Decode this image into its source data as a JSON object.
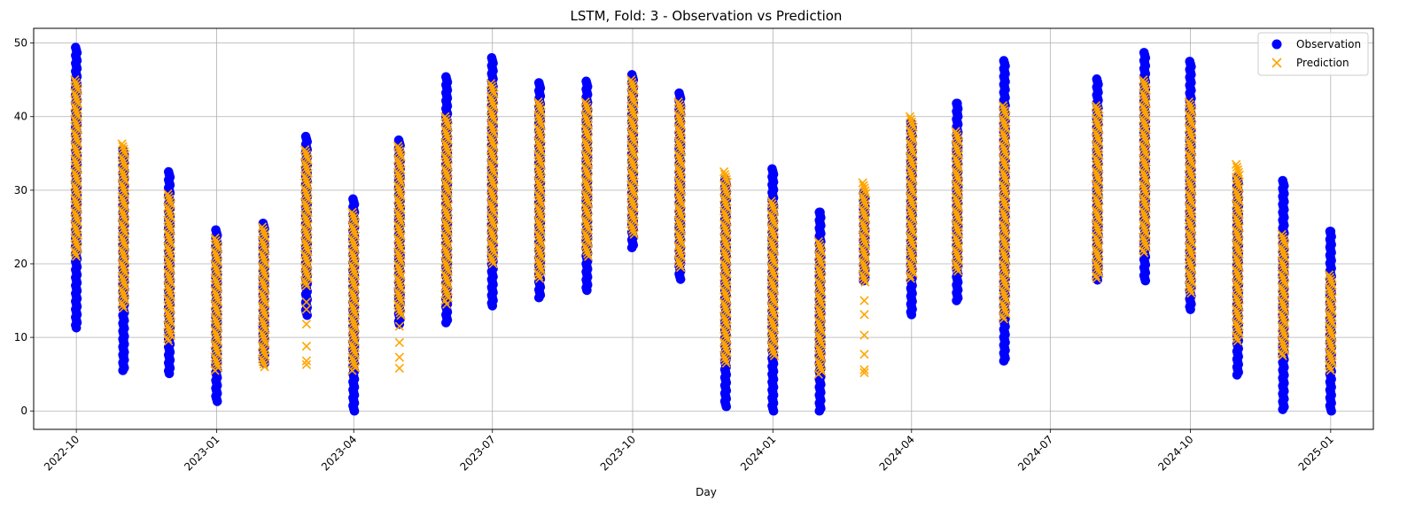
{
  "chart_data": {
    "type": "scatter",
    "title": "LSTM, Fold: 3 - Observation vs Prediction",
    "xlabel": "Day",
    "ylabel": "",
    "xlim": [
      "2022-09-03",
      "2025-01-29"
    ],
    "ylim": [
      -2.5,
      52
    ],
    "grid": true,
    "legend_position": "top-right",
    "x_ticks": [
      "2022-10",
      "2023-01",
      "2023-04",
      "2023-07",
      "2023-10",
      "2024-01",
      "2024-04",
      "2024-07",
      "2024-10",
      "2025-01"
    ],
    "y_ticks": [
      0,
      10,
      20,
      30,
      40,
      50
    ],
    "series": [
      {
        "name": "Observation",
        "marker": "circle",
        "color": "#0000ff",
        "points": [
          {
            "x": "2022-10-01",
            "min": 11.3,
            "max": 49.4
          },
          {
            "x": "2022-11-01",
            "min": 5.5,
            "max": 35.5
          },
          {
            "x": "2022-12-01",
            "min": 5.1,
            "max": 32.5
          },
          {
            "x": "2023-01-01",
            "min": 1.3,
            "max": 24.6
          },
          {
            "x": "2023-02-01",
            "min": 6.5,
            "max": 25.5
          },
          {
            "x": "2023-03-01",
            "min": 13.0,
            "max": 37.3
          },
          {
            "x": "2023-04-01",
            "min": 0.0,
            "max": 28.8
          },
          {
            "x": "2023-05-01",
            "min": 11.8,
            "max": 36.8
          },
          {
            "x": "2023-06-01",
            "min": 12.0,
            "max": 45.4
          },
          {
            "x": "2023-07-01",
            "min": 14.3,
            "max": 48.0
          },
          {
            "x": "2023-08-01",
            "min": 15.4,
            "max": 44.6
          },
          {
            "x": "2023-09-01",
            "min": 16.4,
            "max": 44.8
          },
          {
            "x": "2023-10-01",
            "min": 22.2,
            "max": 45.7
          },
          {
            "x": "2023-11-01",
            "min": 17.9,
            "max": 43.2
          },
          {
            "x": "2023-12-01",
            "min": 0.6,
            "max": 31.5
          },
          {
            "x": "2024-01-01",
            "min": 0.0,
            "max": 32.9
          },
          {
            "x": "2024-02-01",
            "min": 0.0,
            "max": 27.0
          },
          {
            "x": "2024-03-01",
            "min": 17.7,
            "max": 29.6
          },
          {
            "x": "2024-04-01",
            "min": 13.1,
            "max": 39.2
          },
          {
            "x": "2024-05-01",
            "min": 15.0,
            "max": 41.8
          },
          {
            "x": "2024-06-01",
            "min": 6.8,
            "max": 47.6
          },
          {
            "x": "2024-08-01",
            "min": 17.8,
            "max": 45.1
          },
          {
            "x": "2024-09-01",
            "min": 17.7,
            "max": 48.7
          },
          {
            "x": "2024-10-01",
            "min": 13.8,
            "max": 47.5
          },
          {
            "x": "2024-11-01",
            "min": 4.9,
            "max": 31.7
          },
          {
            "x": "2024-12-01",
            "min": 0.2,
            "max": 31.3
          },
          {
            "x": "2025-01-01",
            "min": 0.0,
            "max": 24.4
          }
        ],
        "isolated_values": [
          {
            "x": "2022-11-01",
            "y": [
              7.5,
              9.8
            ]
          },
          {
            "x": "2023-12-01",
            "y": [
              8.0
            ]
          },
          {
            "x": "2024-05-01",
            "y": [
              40.5,
              41.8
            ]
          },
          {
            "x": "2025-01-01",
            "y": [
              22.6,
              24.4
            ]
          },
          {
            "x": "2024-02-01",
            "y": [
              25.5,
              27.0
            ]
          }
        ]
      },
      {
        "name": "Prediction",
        "marker": "x",
        "color": "#ffa500",
        "points": [
          {
            "x": "2022-10-01",
            "min": 21.0,
            "max": 45.0
          },
          {
            "x": "2022-11-01",
            "min": 14.0,
            "max": 36.3
          },
          {
            "x": "2022-12-01",
            "min": 9.5,
            "max": 29.5
          },
          {
            "x": "2023-01-01",
            "min": 5.5,
            "max": 23.5
          },
          {
            "x": "2023-02-01",
            "min": 6.0,
            "max": 25.0
          },
          {
            "x": "2023-03-01",
            "min": 17.0,
            "max": 35.5
          },
          {
            "x": "2023-04-01",
            "min": 5.5,
            "max": 27.0
          },
          {
            "x": "2023-05-01",
            "min": 13.0,
            "max": 36.0
          },
          {
            "x": "2023-06-01",
            "min": 15.0,
            "max": 40.0
          },
          {
            "x": "2023-07-01",
            "min": 20.0,
            "max": 44.5
          },
          {
            "x": "2023-08-01",
            "min": 18.0,
            "max": 42.0
          },
          {
            "x": "2023-09-01",
            "min": 21.0,
            "max": 42.0
          },
          {
            "x": "2023-10-01",
            "min": 24.0,
            "max": 45.0
          },
          {
            "x": "2023-11-01",
            "min": 19.5,
            "max": 42.0
          },
          {
            "x": "2023-12-01",
            "min": 6.5,
            "max": 32.5
          },
          {
            "x": "2024-01-01",
            "min": 7.5,
            "max": 28.5
          },
          {
            "x": "2024-02-01",
            "min": 5.0,
            "max": 23.0
          },
          {
            "x": "2024-03-01",
            "min": 17.5,
            "max": 31.0
          },
          {
            "x": "2024-04-01",
            "min": 18.0,
            "max": 40.0
          },
          {
            "x": "2024-05-01",
            "min": 19.0,
            "max": 38.0
          },
          {
            "x": "2024-06-01",
            "min": 12.5,
            "max": 41.5
          },
          {
            "x": "2024-08-01",
            "min": 18.0,
            "max": 41.5
          },
          {
            "x": "2024-09-01",
            "min": 21.5,
            "max": 45.0
          },
          {
            "x": "2024-10-01",
            "min": 16.0,
            "max": 42.0
          },
          {
            "x": "2024-11-01",
            "min": 9.5,
            "max": 33.5
          },
          {
            "x": "2024-12-01",
            "min": 7.5,
            "max": 24.0
          },
          {
            "x": "2025-01-01",
            "min": 5.5,
            "max": 18.5
          }
        ],
        "isolated_values": [
          {
            "x": "2023-03-01",
            "y": [
              6.3,
              6.8,
              8.8,
              11.8,
              13.8,
              14.8
            ]
          },
          {
            "x": "2023-05-01",
            "y": [
              5.8,
              7.3,
              9.3,
              11.5
            ]
          },
          {
            "x": "2024-03-01",
            "y": [
              5.2,
              5.6,
              7.7,
              10.3,
              13.1,
              15.0
            ]
          },
          {
            "x": "2023-06-01",
            "y": [
              14.5
            ]
          }
        ]
      }
    ]
  }
}
